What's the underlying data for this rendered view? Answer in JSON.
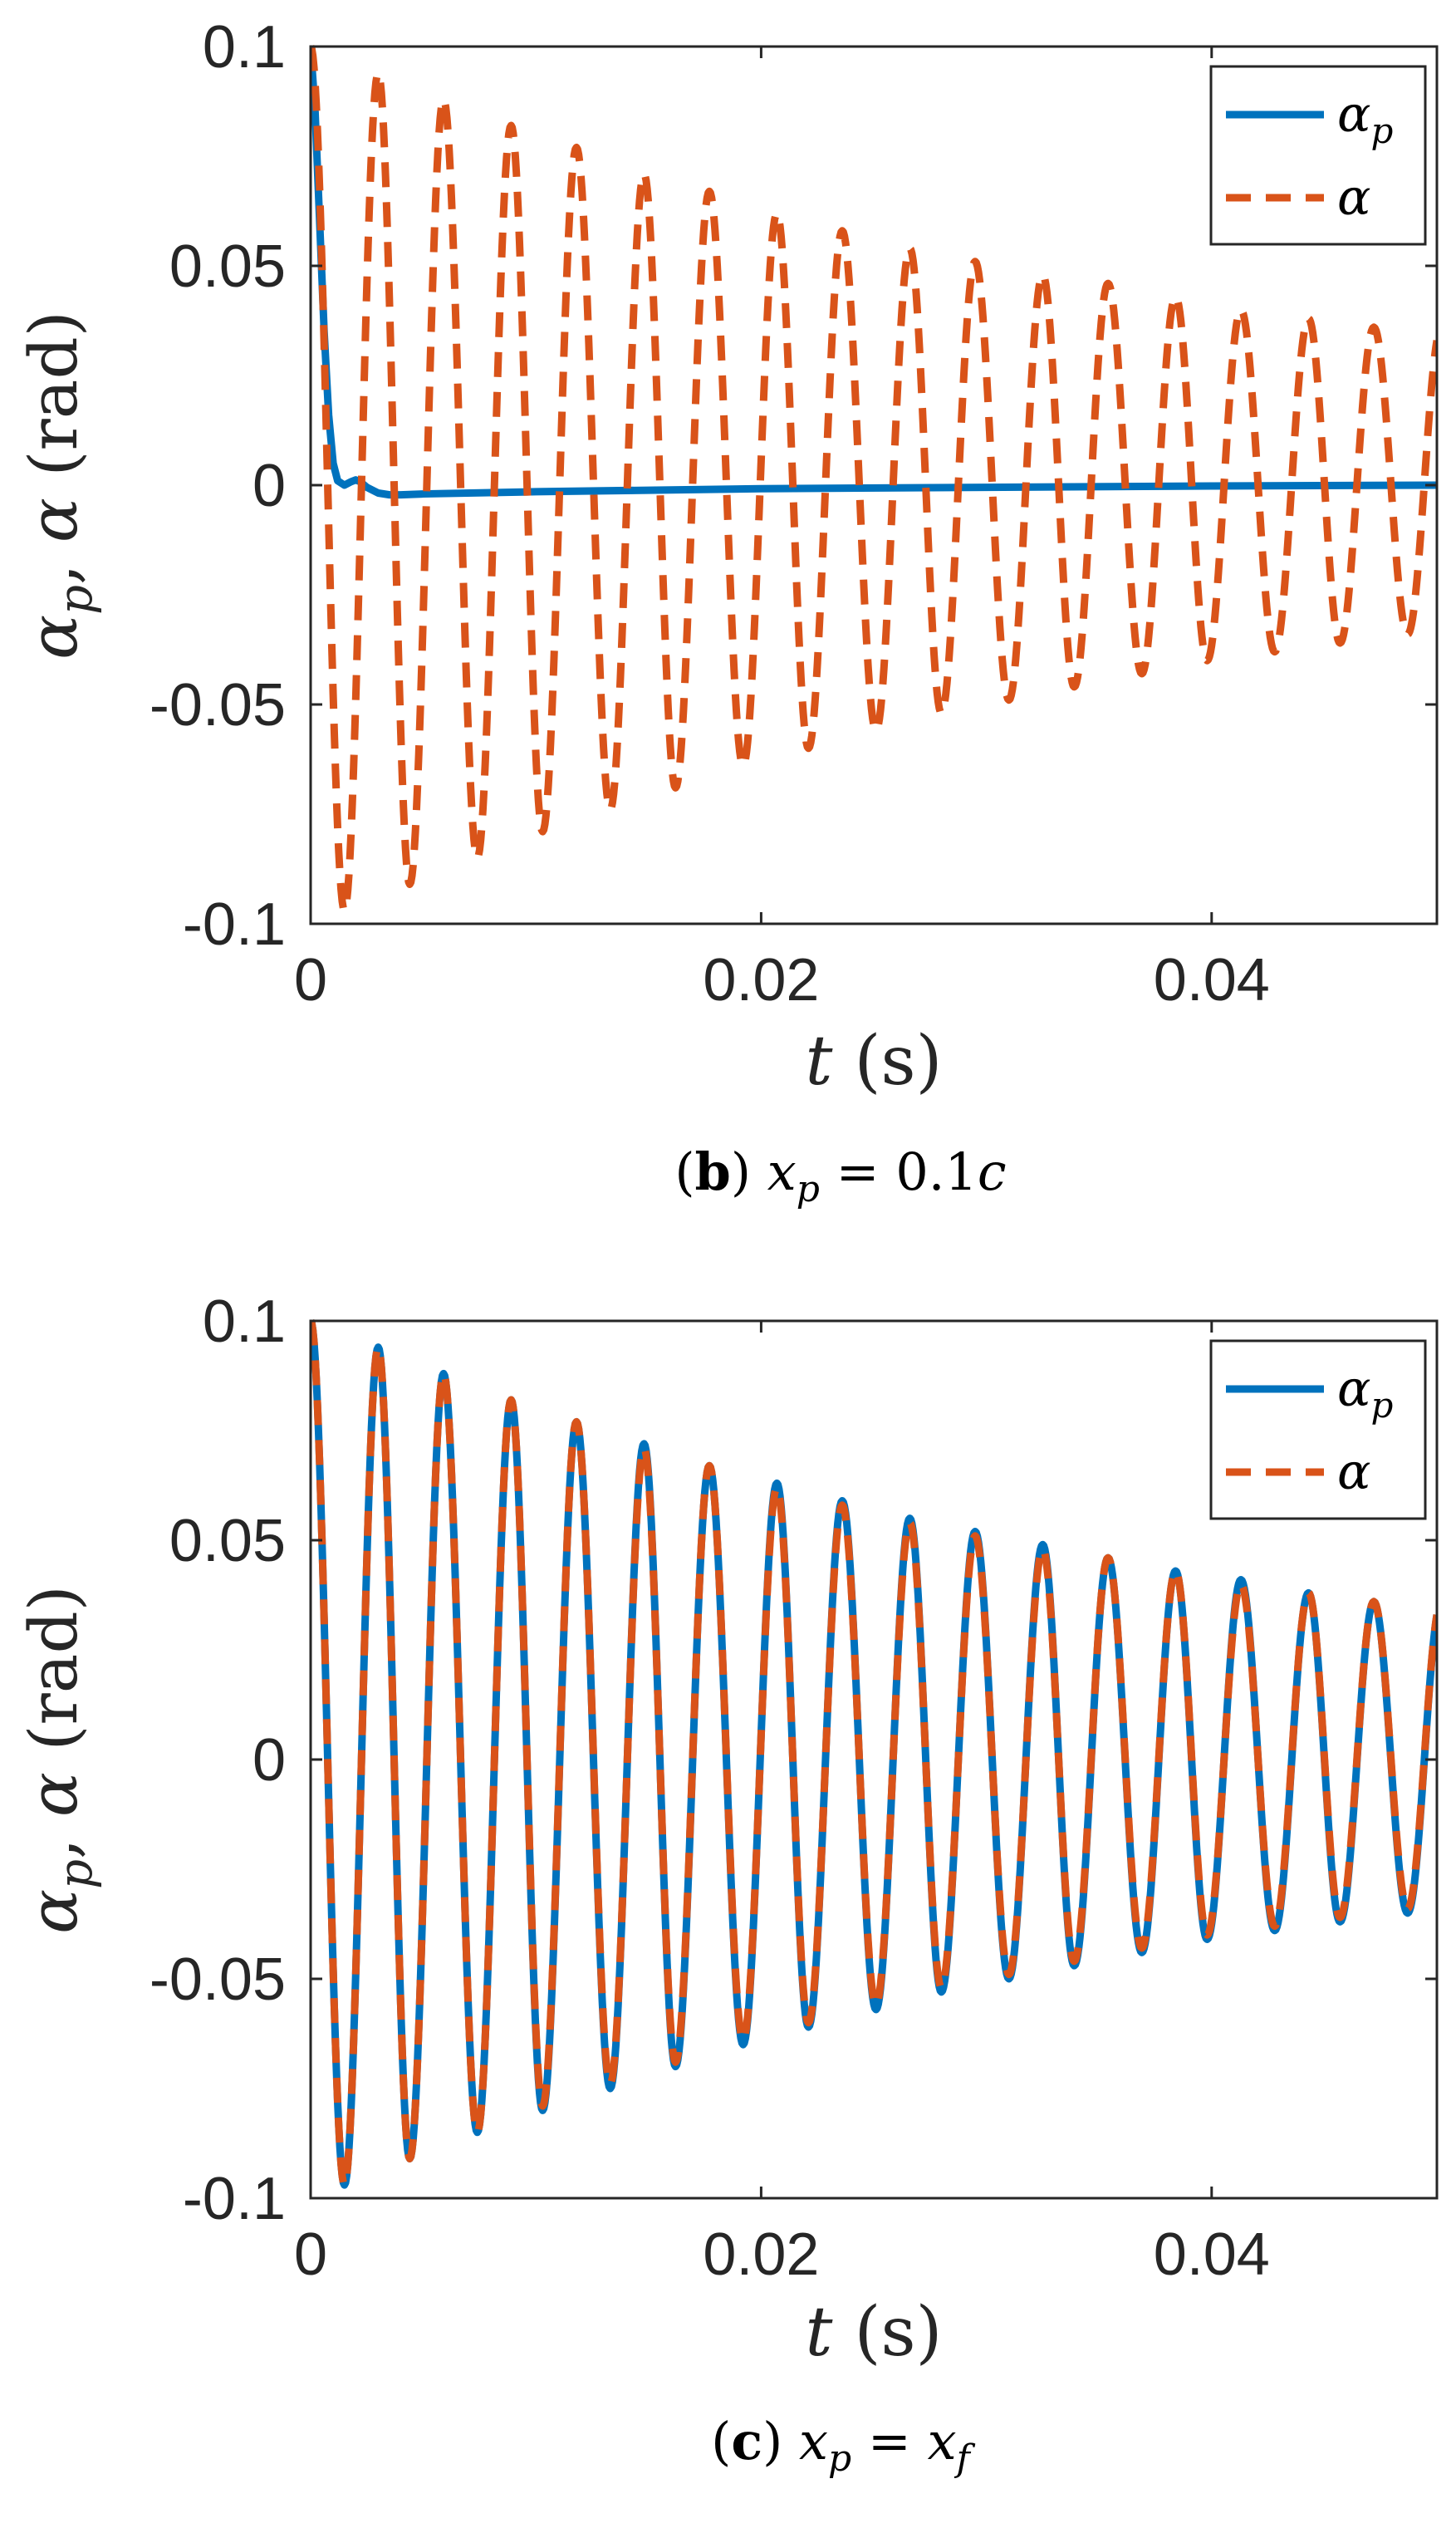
{
  "chart_data": [
    {
      "type": "line",
      "panel_id": "b",
      "caption": {
        "label": "b",
        "text": "x_p = 0.1c"
      },
      "xlabel": {
        "symbol": "t",
        "unit": "(s)"
      },
      "ylabel": {
        "text": "α_p, α (rad)"
      },
      "xlim": [
        0,
        0.05
      ],
      "ylim": [
        -0.1,
        0.1
      ],
      "xticks": [
        0,
        0.02,
        0.04
      ],
      "xtick_labels": [
        "0",
        "0.02",
        "0.04"
      ],
      "yticks": [
        -0.1,
        -0.05,
        0,
        0.05,
        0.1
      ],
      "ytick_labels": [
        "-0.1",
        "-0.05",
        "0",
        "0.05",
        "0.1"
      ],
      "grid": false,
      "legend": {
        "position": "top-right",
        "entries": [
          "α_p",
          "α"
        ]
      },
      "series": [
        {
          "name": "α_p",
          "color": "#0072BD",
          "style": "solid",
          "x": [
            0,
            0.0002,
            0.0004,
            0.0006,
            0.0008,
            0.001,
            0.0012,
            0.0015,
            0.0018,
            0.002,
            0.0022,
            0.0025,
            0.003,
            0.0035,
            0.004,
            0.005,
            0.01,
            0.02,
            0.03,
            0.04,
            0.05
          ],
          "values": [
            0.1,
            0.085,
            0.06,
            0.035,
            0.016,
            0.005,
            0.001,
            0.0,
            0.0008,
            0.0012,
            0.0008,
            -0.0005,
            -0.0018,
            -0.0022,
            -0.0022,
            -0.002,
            -0.0015,
            -0.0008,
            -0.0005,
            -0.0002,
            0.0
          ]
        },
        {
          "name": "α",
          "color": "#D95319",
          "style": "dashed",
          "initial": 0.1,
          "peaks_at": [
            0,
            0.003,
            0.0059,
            0.0089,
            0.0118,
            0.0148,
            0.0177,
            0.0207,
            0.0236,
            0.0266,
            0.0295,
            0.0325,
            0.0354,
            0.0384,
            0.0413,
            0.0443,
            0.0472
          ],
          "peaks": [
            0.1,
            0.094,
            0.088,
            0.082,
            0.077,
            0.071,
            0.067,
            0.062,
            0.058,
            0.054,
            0.051,
            0.048,
            0.046,
            0.043,
            0.04,
            0.038,
            0.036
          ],
          "troughs_at": [
            0.0015,
            0.0044,
            0.0074,
            0.0103,
            0.0133,
            0.0162,
            0.0192,
            0.0221,
            0.0251,
            0.028,
            0.031,
            0.0339,
            0.0369,
            0.0398,
            0.0428,
            0.0457,
            0.0487
          ],
          "troughs": [
            -0.097,
            -0.091,
            -0.085,
            -0.079,
            -0.074,
            -0.069,
            -0.064,
            -0.06,
            -0.056,
            -0.052,
            -0.049,
            -0.046,
            -0.043,
            -0.04,
            -0.038,
            -0.036,
            -0.034
          ],
          "end_value": 0.033
        }
      ]
    },
    {
      "type": "line",
      "panel_id": "c",
      "caption": {
        "label": "c",
        "text": "x_p = x_f"
      },
      "xlabel": {
        "symbol": "t",
        "unit": "(s)"
      },
      "ylabel": {
        "text": "α_p, α (rad)"
      },
      "xlim": [
        0,
        0.05
      ],
      "ylim": [
        -0.1,
        0.1
      ],
      "xticks": [
        0,
        0.02,
        0.04
      ],
      "xtick_labels": [
        "0",
        "0.02",
        "0.04"
      ],
      "yticks": [
        -0.1,
        -0.05,
        0,
        0.05,
        0.1
      ],
      "ytick_labels": [
        "-0.1",
        "-0.05",
        "0",
        "0.05",
        "0.1"
      ],
      "grid": false,
      "legend": {
        "position": "top-right",
        "entries": [
          "α_p",
          "α"
        ]
      },
      "series": [
        {
          "name": "α_p",
          "color": "#0072BD",
          "style": "solid",
          "initial": 0.1,
          "peaks_at": [
            0,
            0.003,
            0.0059,
            0.0089,
            0.0118,
            0.0148,
            0.0177,
            0.0207,
            0.0236,
            0.0266,
            0.0295,
            0.0325,
            0.0354,
            0.0384,
            0.0413,
            0.0443,
            0.0472
          ],
          "peaks": [
            0.1,
            0.094,
            0.088,
            0.082,
            0.077,
            0.072,
            0.067,
            0.063,
            0.059,
            0.055,
            0.052,
            0.049,
            0.046,
            0.043,
            0.041,
            0.038,
            0.036
          ],
          "troughs_at": [
            0.0015,
            0.0044,
            0.0074,
            0.0103,
            0.0133,
            0.0162,
            0.0192,
            0.0221,
            0.0251,
            0.028,
            0.031,
            0.0339,
            0.0369,
            0.0398,
            0.0428,
            0.0457,
            0.0487
          ],
          "troughs": [
            -0.097,
            -0.091,
            -0.085,
            -0.08,
            -0.075,
            -0.07,
            -0.065,
            -0.061,
            -0.057,
            -0.053,
            -0.05,
            -0.047,
            -0.044,
            -0.041,
            -0.039,
            -0.037,
            -0.035
          ],
          "end_value": 0.033
        },
        {
          "name": "α",
          "color": "#D95319",
          "style": "dashed",
          "initial": 0.1,
          "peaks_at": [
            0,
            0.003,
            0.0059,
            0.0089,
            0.0118,
            0.0148,
            0.0177,
            0.0207,
            0.0236,
            0.0266,
            0.0295,
            0.0325,
            0.0354,
            0.0384,
            0.0413,
            0.0443,
            0.0472
          ],
          "peaks": [
            0.1,
            0.094,
            0.088,
            0.082,
            0.077,
            0.071,
            0.067,
            0.062,
            0.058,
            0.054,
            0.051,
            0.048,
            0.046,
            0.043,
            0.04,
            0.038,
            0.036
          ],
          "troughs_at": [
            0.0015,
            0.0044,
            0.0074,
            0.0103,
            0.0133,
            0.0162,
            0.0192,
            0.0221,
            0.0251,
            0.028,
            0.031,
            0.0339,
            0.0369,
            0.0398,
            0.0428,
            0.0457,
            0.0487
          ],
          "troughs": [
            -0.097,
            -0.091,
            -0.085,
            -0.079,
            -0.074,
            -0.069,
            -0.064,
            -0.06,
            -0.056,
            -0.052,
            -0.049,
            -0.046,
            -0.043,
            -0.04,
            -0.038,
            -0.036,
            -0.034
          ],
          "end_value": 0.033
        }
      ]
    }
  ]
}
